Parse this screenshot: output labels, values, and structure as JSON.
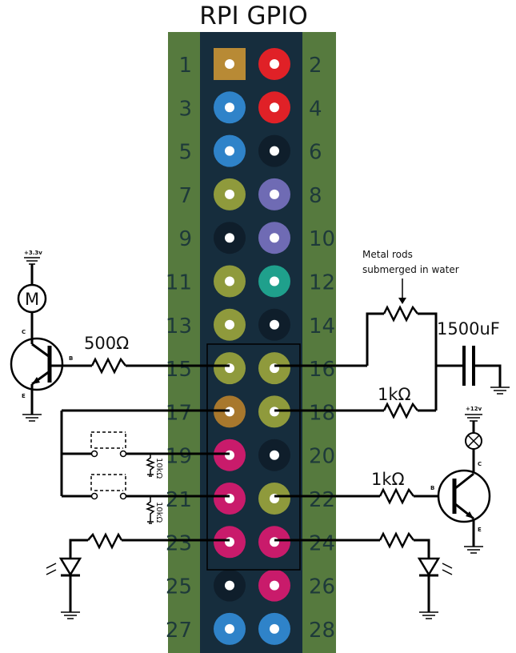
{
  "title": "RPI GPIO",
  "colors": {
    "header_green": "#567a3e",
    "header_dark": "#162d3d",
    "power_5v": "#e02127",
    "power_3v3": "#b88a35",
    "gpio_blue": "#2f83c9",
    "gpio_olive": "#8f9a3c",
    "ground": "#0f1e2b",
    "gpio_purple": "#6f6bb4",
    "gpio_teal": "#1fa08c",
    "gpio_magenta": "#c91b6b",
    "gpio_orange": "#a8782d"
  },
  "pins": [
    {
      "num": "1",
      "type": "power_3v3"
    },
    {
      "num": "2",
      "type": "power_5v"
    },
    {
      "num": "3",
      "type": "gpio_blue"
    },
    {
      "num": "4",
      "type": "power_5v"
    },
    {
      "num": "5",
      "type": "gpio_blue"
    },
    {
      "num": "6",
      "type": "ground"
    },
    {
      "num": "7",
      "type": "gpio_olive"
    },
    {
      "num": "8",
      "type": "gpio_purple"
    },
    {
      "num": "9",
      "type": "ground"
    },
    {
      "num": "10",
      "type": "gpio_purple"
    },
    {
      "num": "11",
      "type": "gpio_olive"
    },
    {
      "num": "12",
      "type": "gpio_teal"
    },
    {
      "num": "13",
      "type": "gpio_olive"
    },
    {
      "num": "14",
      "type": "ground"
    },
    {
      "num": "15",
      "type": "gpio_olive"
    },
    {
      "num": "16",
      "type": "gpio_olive"
    },
    {
      "num": "17",
      "type": "gpio_orange"
    },
    {
      "num": "18",
      "type": "gpio_olive"
    },
    {
      "num": "19",
      "type": "gpio_magenta"
    },
    {
      "num": "20",
      "type": "ground"
    },
    {
      "num": "21",
      "type": "gpio_magenta"
    },
    {
      "num": "22",
      "type": "gpio_olive"
    },
    {
      "num": "23",
      "type": "gpio_magenta"
    },
    {
      "num": "24",
      "type": "gpio_magenta"
    },
    {
      "num": "25",
      "type": "ground"
    },
    {
      "num": "26",
      "type": "gpio_magenta"
    },
    {
      "num": "27",
      "type": "gpio_blue"
    },
    {
      "num": "28",
      "type": "gpio_blue"
    }
  ],
  "labels": {
    "supply_3v3": "+3.3v",
    "motor": "M",
    "transistor_c": "C",
    "transistor_b": "B",
    "transistor_e": "E",
    "resistor_500": "500Ω",
    "water_sensor_line1": "Metal rods",
    "water_sensor_line2": "submerged in water",
    "capacitor": "1500uF",
    "resistor_1k_top": "1kΩ",
    "resistor_1k_bottom": "1kΩ",
    "pulldown_1": "10kΩ",
    "pulldown_2": "10kΩ",
    "supply_12v": "+12v"
  }
}
